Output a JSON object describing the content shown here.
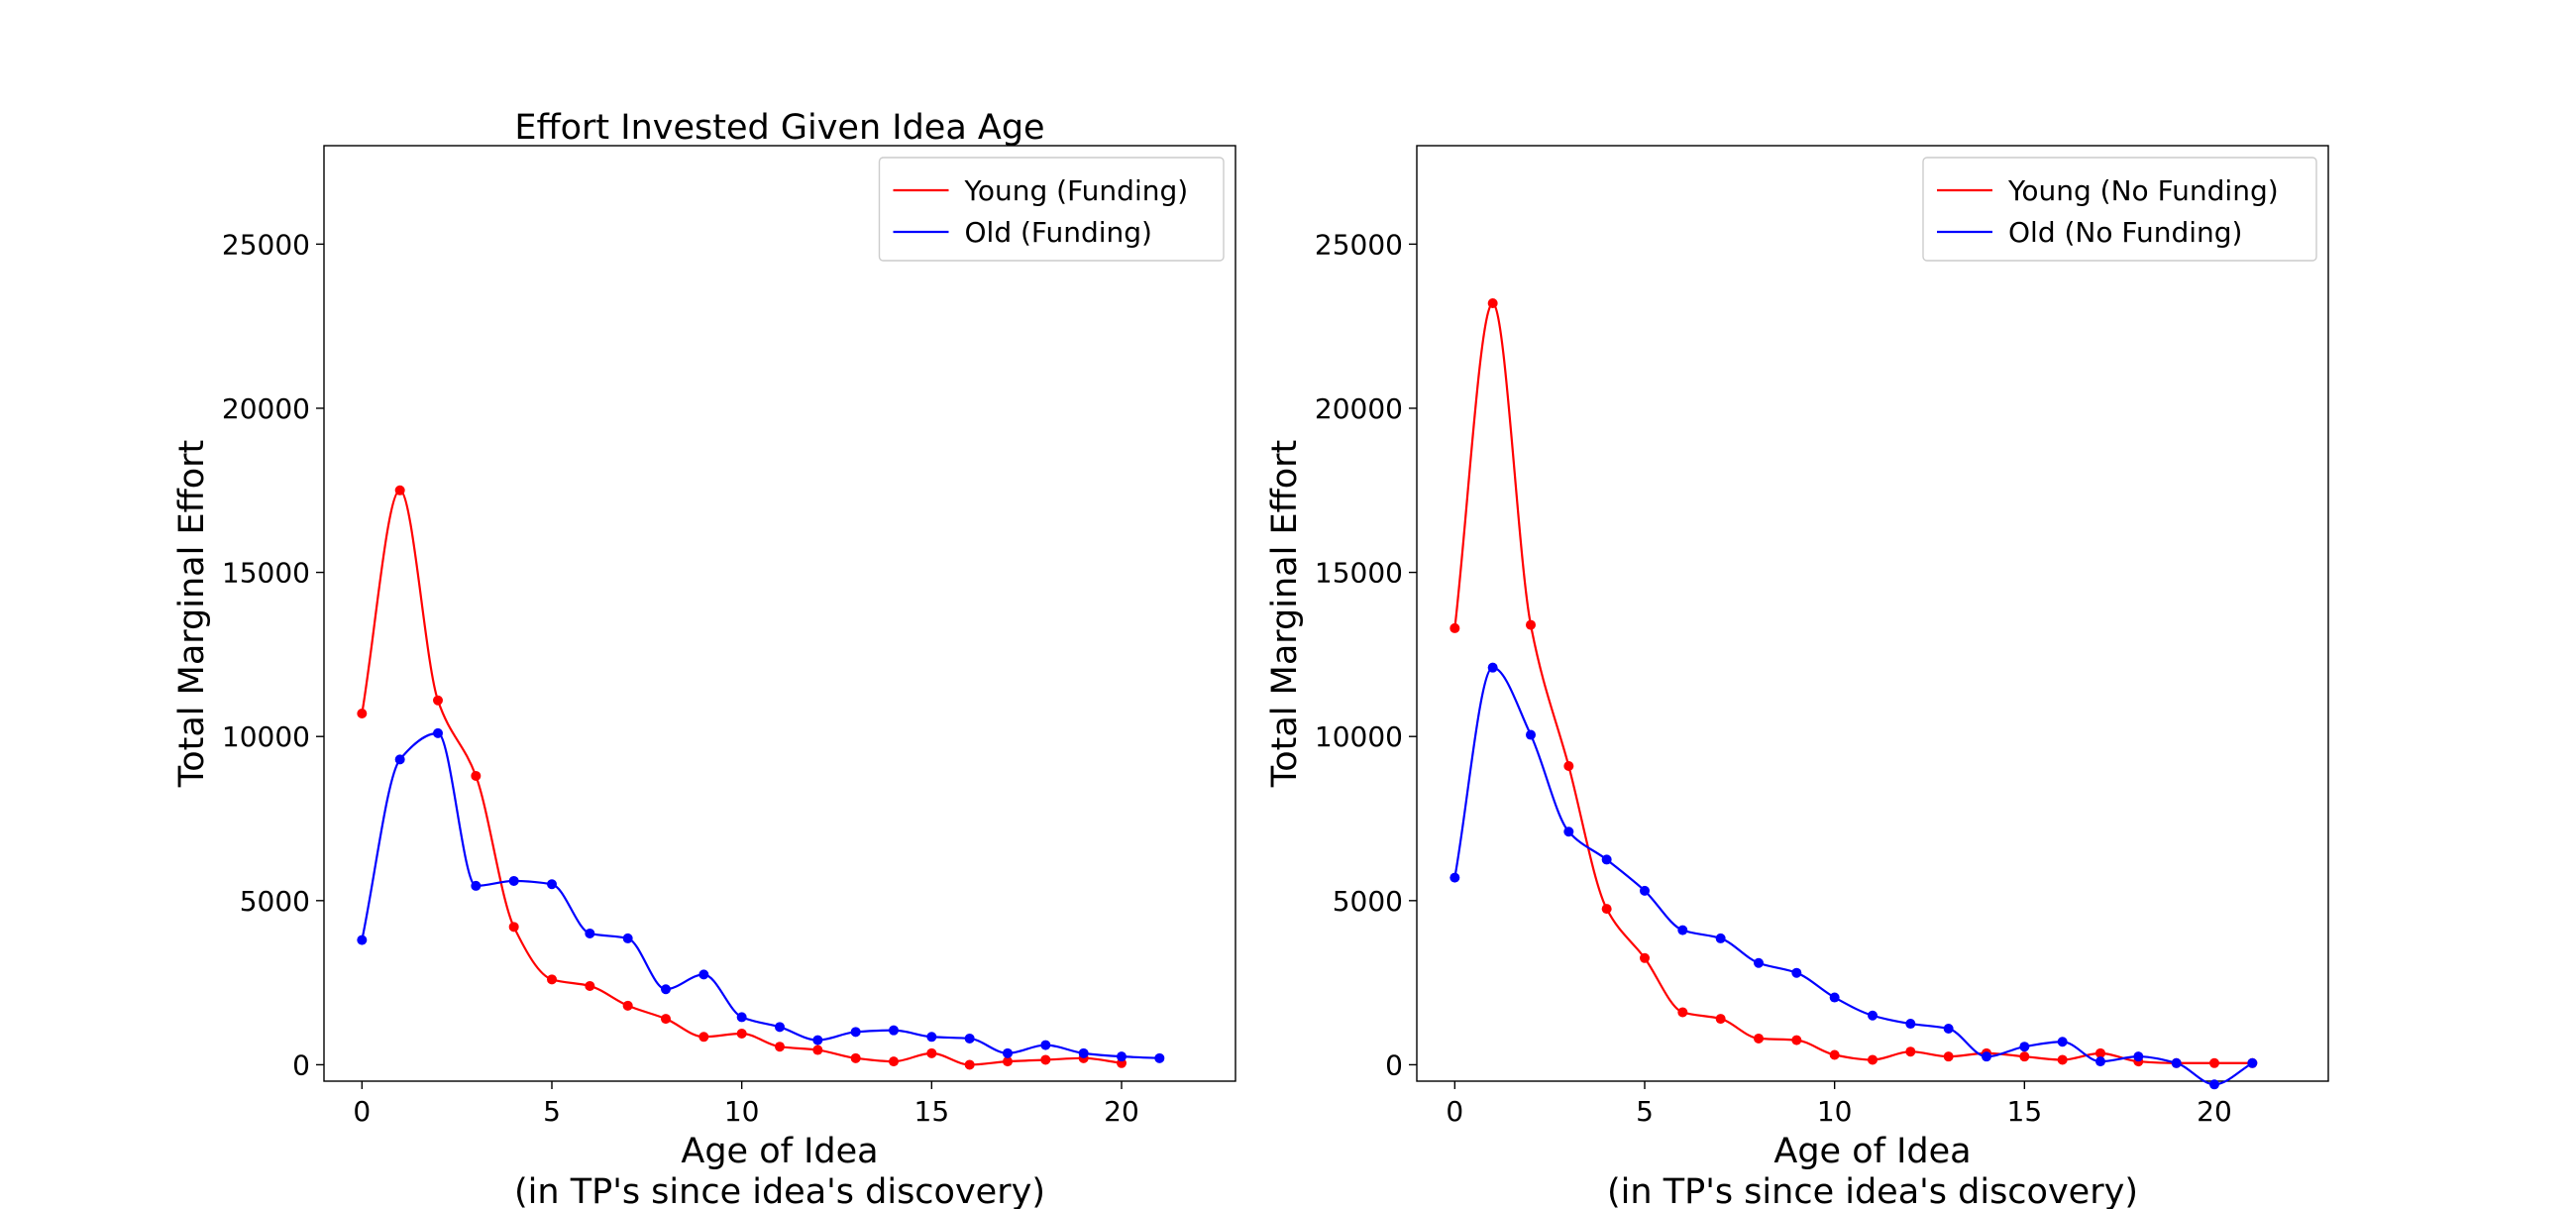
{
  "chart_data": [
    {
      "type": "line",
      "title": "Effort Invested Given Idea Age",
      "xlabel": "Age of Idea",
      "xlabel_line2": "(in TP's since idea's discovery)",
      "ylabel": "Total Marginal Effort",
      "xlim": [
        -1,
        23
      ],
      "ylim": [
        -500,
        28000
      ],
      "xticks": [
        0,
        5,
        10,
        15,
        20
      ],
      "yticks": [
        0,
        5000,
        10000,
        15000,
        20000,
        25000
      ],
      "grid": false,
      "legend": "top-right",
      "series": [
        {
          "name": "Young (Funding)",
          "color": "#ff0000",
          "x": [
            0,
            1,
            2,
            3,
            4,
            5,
            6,
            7,
            8,
            9,
            10,
            11,
            12,
            13,
            14,
            15,
            16,
            17,
            18,
            19,
            20
          ],
          "y": [
            10700,
            17500,
            11100,
            8800,
            4200,
            2600,
            2400,
            1800,
            1400,
            850,
            950,
            550,
            450,
            200,
            100,
            350,
            0,
            100,
            150,
            200,
            50
          ]
        },
        {
          "name": "Old (Funding)",
          "color": "#0000ff",
          "x": [
            0,
            1,
            2,
            3,
            4,
            5,
            6,
            7,
            8,
            9,
            10,
            11,
            12,
            13,
            14,
            15,
            16,
            17,
            18,
            19,
            20,
            21
          ],
          "y": [
            3800,
            9300,
            10100,
            5450,
            5600,
            5500,
            4000,
            3850,
            2300,
            2750,
            1450,
            1150,
            750,
            1000,
            1050,
            850,
            800,
            350,
            600,
            350,
            250,
            200
          ]
        }
      ]
    },
    {
      "type": "line",
      "title": "",
      "xlabel": "Age of Idea",
      "xlabel_line2": "(in TP's since idea's discovery)",
      "ylabel": "Total Marginal Effort",
      "xlim": [
        -1,
        23
      ],
      "ylim": [
        -500,
        28000
      ],
      "xticks": [
        0,
        5,
        10,
        15,
        20
      ],
      "yticks": [
        0,
        5000,
        10000,
        15000,
        20000,
        25000
      ],
      "grid": false,
      "legend": "top-right",
      "series": [
        {
          "name": "Young (No Funding)",
          "color": "#ff0000",
          "x": [
            0,
            1,
            2,
            3,
            4,
            5,
            6,
            7,
            8,
            9,
            10,
            11,
            12,
            13,
            14,
            15,
            16,
            17,
            18,
            19,
            20,
            21
          ],
          "y": [
            13300,
            23200,
            13400,
            9100,
            4750,
            3250,
            1600,
            1400,
            800,
            750,
            300,
            150,
            400,
            250,
            350,
            250,
            150,
            350,
            100,
            50,
            50,
            50
          ]
        },
        {
          "name": "Old (No Funding)",
          "color": "#0000ff",
          "x": [
            0,
            1,
            2,
            3,
            4,
            5,
            6,
            7,
            8,
            9,
            10,
            11,
            12,
            13,
            14,
            15,
            16,
            17,
            18,
            19,
            20,
            21
          ],
          "y": [
            5700,
            12100,
            10050,
            7100,
            6250,
            5300,
            4100,
            3850,
            3100,
            2800,
            2050,
            1500,
            1250,
            1100,
            250,
            550,
            700,
            100,
            250,
            50,
            -600,
            50
          ]
        }
      ]
    }
  ]
}
